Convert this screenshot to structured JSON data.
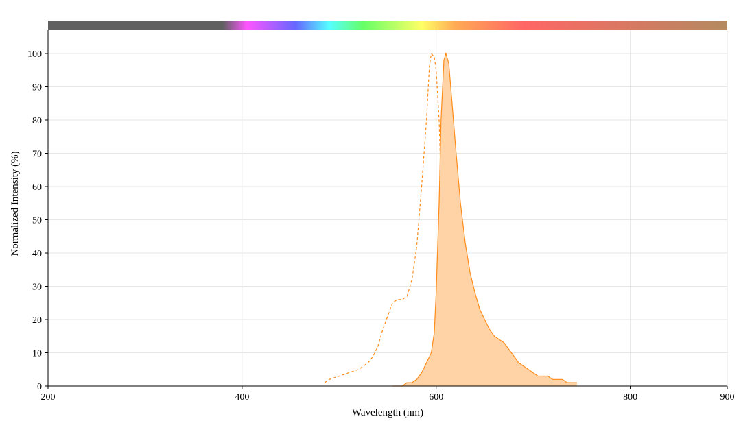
{
  "chart_data": {
    "type": "area",
    "xlabel": "Wavelength (nm)",
    "ylabel": "Normalized Intensity (%)",
    "xlim": [
      200,
      900
    ],
    "ylim": [
      0,
      100
    ],
    "xticks": [
      200,
      400,
      600,
      800,
      900
    ],
    "yticks": [
      0,
      10,
      20,
      30,
      40,
      50,
      60,
      70,
      80,
      90,
      100
    ],
    "grid": true,
    "spectrum_bar": {
      "stops": [
        {
          "wl": 200,
          "color": "#606060"
        },
        {
          "wl": 380,
          "color": "#606060"
        },
        {
          "wl": 405,
          "color": "#ff55ff"
        },
        {
          "wl": 455,
          "color": "#6666ff"
        },
        {
          "wl": 490,
          "color": "#55ffff"
        },
        {
          "wl": 525,
          "color": "#66ff66"
        },
        {
          "wl": 585,
          "color": "#ffff66"
        },
        {
          "wl": 620,
          "color": "#ffaa55"
        },
        {
          "wl": 690,
          "color": "#ff6666"
        },
        {
          "wl": 900,
          "color": "#b38a60"
        }
      ]
    },
    "series": [
      {
        "style": "dashed",
        "color": "#ff8c1a",
        "x": [
          485,
          490,
          500,
          510,
          520,
          530,
          535,
          540,
          545,
          550,
          555,
          560,
          565,
          570,
          575,
          580,
          585,
          590,
          593,
          595,
          598,
          600,
          603,
          605,
          608,
          610,
          615,
          620,
          625,
          630,
          635
        ],
        "y": [
          1,
          2,
          3,
          4,
          5,
          7,
          9,
          12,
          17,
          21,
          25,
          26,
          26,
          27,
          32,
          42,
          60,
          80,
          96,
          100,
          99,
          95,
          80,
          60,
          40,
          25,
          15,
          8,
          4,
          2,
          0
        ]
      },
      {
        "style": "filled",
        "color": "#ff8c1a",
        "fill": "#ffd3a6",
        "x": [
          555,
          565,
          570,
          575,
          580,
          585,
          590,
          595,
          598,
          600,
          603,
          605,
          608,
          610,
          613,
          615,
          620,
          625,
          630,
          635,
          640,
          645,
          650,
          655,
          660,
          665,
          670,
          675,
          680,
          685,
          690,
          695,
          700,
          705,
          710,
          715,
          720,
          725,
          730,
          735,
          740,
          745
        ],
        "y": [
          0,
          0,
          1,
          1,
          2,
          4,
          7,
          10,
          16,
          28,
          55,
          80,
          98,
          100,
          97,
          90,
          72,
          55,
          43,
          34,
          28,
          23,
          20,
          17,
          15,
          14,
          13,
          11,
          9,
          7,
          6,
          5,
          4,
          3,
          3,
          3,
          2,
          2,
          2,
          1,
          1,
          1
        ]
      }
    ]
  }
}
